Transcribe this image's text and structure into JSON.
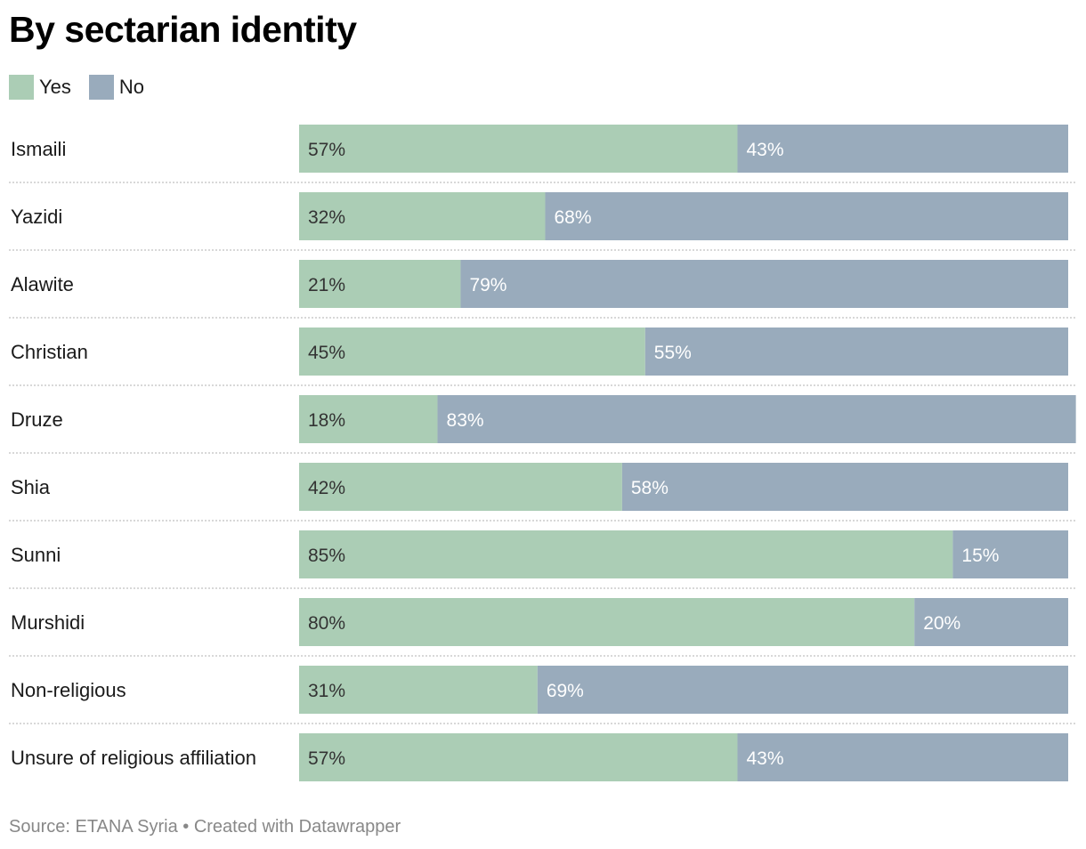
{
  "chart_data": {
    "type": "bar",
    "orientation": "horizontal",
    "stacked": true,
    "title": "By sectarian identity",
    "xlabel": "",
    "ylabel": "",
    "xlim": [
      0,
      100
    ],
    "grid": false,
    "legend_position": "top-left",
    "categories": [
      "Ismaili",
      "Yazidi",
      "Alawite",
      "Christian",
      "Druze",
      "Shia",
      "Sunni",
      "Murshidi",
      "Non-religious",
      "Unsure of religious affiliation"
    ],
    "series": [
      {
        "name": "Yes",
        "color": "#abcdb5",
        "label_color": "#333333",
        "values": [
          57,
          32,
          21,
          45,
          18,
          42,
          85,
          80,
          31,
          57
        ]
      },
      {
        "name": "No",
        "color": "#99abbc",
        "label_color": "#ffffff",
        "values": [
          43,
          68,
          79,
          55,
          83,
          58,
          15,
          20,
          69,
          43
        ]
      }
    ],
    "value_suffix": "%"
  },
  "footer": {
    "source": "Source: ETANA Syria • Created with Datawrapper"
  }
}
